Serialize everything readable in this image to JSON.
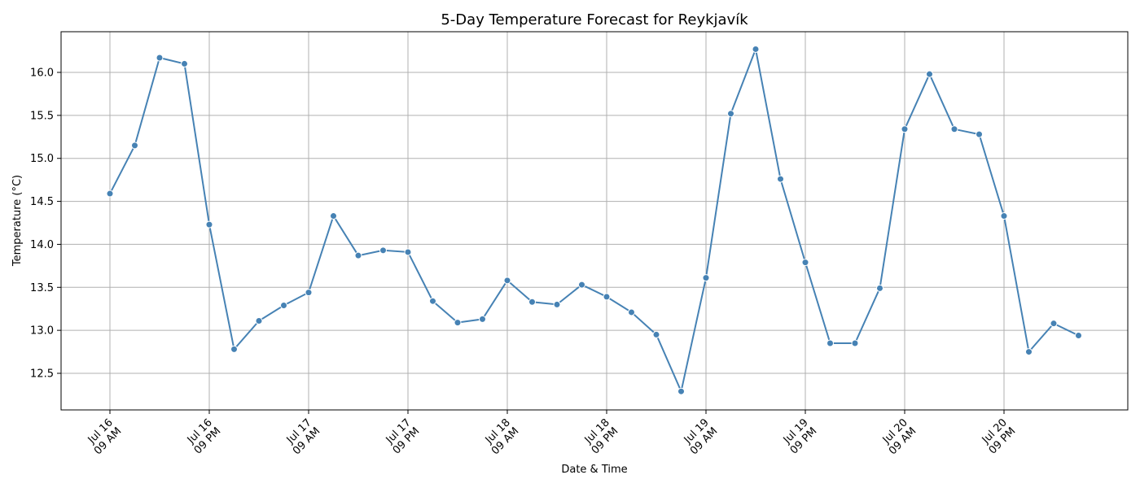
{
  "chart_data": {
    "type": "line",
    "title": "5-Day Temperature Forecast for Reykjavík",
    "xlabel": "Date & Time",
    "ylabel": "Temperature (°C)",
    "x_start": "2024-07-16 09:00",
    "x_step_hours": 3,
    "x_ticks": [
      {
        "label": [
          "Jul 16",
          "09 AM"
        ],
        "index": 0
      },
      {
        "label": [
          "Jul 16",
          "09 PM"
        ],
        "index": 4
      },
      {
        "label": [
          "Jul 17",
          "09 AM"
        ],
        "index": 8
      },
      {
        "label": [
          "Jul 17",
          "09 PM"
        ],
        "index": 12
      },
      {
        "label": [
          "Jul 18",
          "09 AM"
        ],
        "index": 16
      },
      {
        "label": [
          "Jul 18",
          "09 PM"
        ],
        "index": 20
      },
      {
        "label": [
          "Jul 19",
          "09 AM"
        ],
        "index": 24
      },
      {
        "label": [
          "Jul 19",
          "09 PM"
        ],
        "index": 28
      },
      {
        "label": [
          "Jul 20",
          "09 AM"
        ],
        "index": 32
      },
      {
        "label": [
          "Jul 20",
          "09 PM"
        ],
        "index": 36
      }
    ],
    "y_ticks": [
      12.5,
      13.0,
      13.5,
      14.0,
      14.5,
      15.0,
      15.5,
      16.0
    ],
    "ylim": [
      12.08,
      16.47
    ],
    "xlim": [
      -2,
      41
    ],
    "grid": true,
    "series": [
      {
        "color": "#4682b4",
        "values": [
          14.59,
          15.15,
          16.17,
          16.1,
          14.23,
          12.78,
          13.11,
          13.29,
          13.44,
          14.33,
          13.87,
          13.93,
          13.91,
          13.34,
          13.09,
          13.13,
          13.58,
          13.33,
          13.3,
          13.53,
          13.39,
          13.21,
          12.95,
          12.29,
          13.61,
          15.52,
          16.27,
          14.76,
          13.79,
          12.85,
          12.85,
          13.49,
          15.34,
          15.98,
          15.34,
          15.28,
          14.33,
          12.75,
          13.08,
          12.94
        ]
      }
    ]
  }
}
